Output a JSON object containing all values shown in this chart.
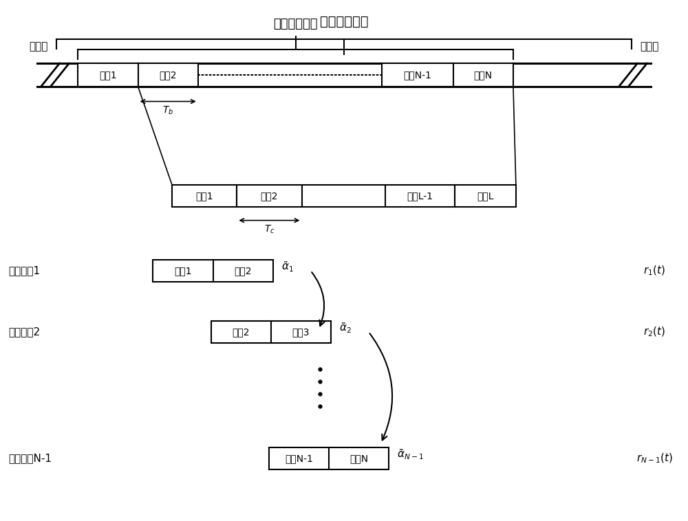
{
  "title": "初始通信信号",
  "effective_signal_label": "有效通信信号",
  "noise_label": "噪声段",
  "symbol_labels": [
    "符号1",
    "符号2",
    "符号N-1",
    "符号N"
  ],
  "chip_labels": [
    "码片1",
    "码片2",
    "码片L-1",
    "码片L"
  ],
  "Tb_label": "T_b",
  "Tc_label": "T_c",
  "pu_labels": [
    "处理单元1",
    "处理单元2",
    "处理单元N-1"
  ],
  "pu_box1_labels": [
    "符号1",
    "符号2"
  ],
  "pu_box2_labels": [
    "符号2",
    "符号3"
  ],
  "pu_boxN_labels": [
    "符号N-1",
    "符号N"
  ],
  "background_color": "#ffffff",
  "line_color": "#000000",
  "text_color": "#000000"
}
